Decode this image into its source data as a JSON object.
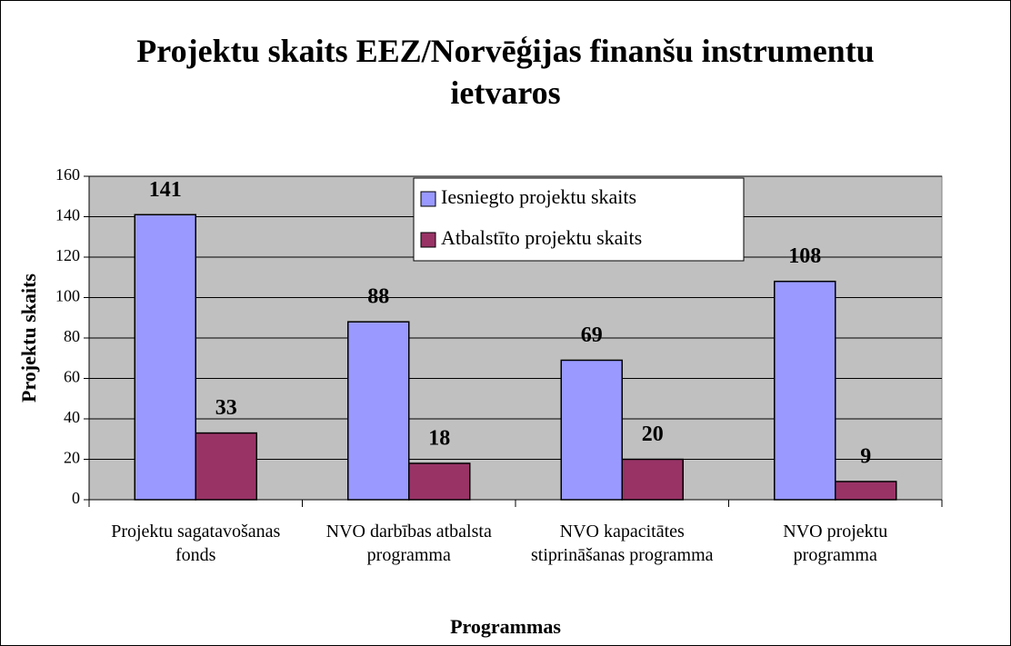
{
  "chart_data": {
    "type": "bar",
    "title": "Projektu skaits EEZ/Norvēģijas finanšu instrumentu ietvaros",
    "x_label": "Programmas",
    "y_label": "Projektu skaits",
    "categories": [
      "Projektu sagatavošanas fonds",
      "NVO darbības atbalsta programma",
      "NVO kapacitātes stiprināšanas programma",
      "NVO projektu programma"
    ],
    "series": [
      {
        "name": "Iesniegto projektu skaits",
        "color": "#9999ff",
        "values": [
          141,
          88,
          69,
          108
        ]
      },
      {
        "name": "Atbalstīto projektu skaits",
        "color": "#993366",
        "values": [
          33,
          18,
          20,
          9
        ]
      }
    ],
    "ylim": [
      0,
      160
    ],
    "yticks": [
      0,
      20,
      40,
      60,
      80,
      100,
      120,
      140,
      160
    ],
    "grid": true,
    "legend": "top",
    "plot_background": "#c0c0c0"
  }
}
